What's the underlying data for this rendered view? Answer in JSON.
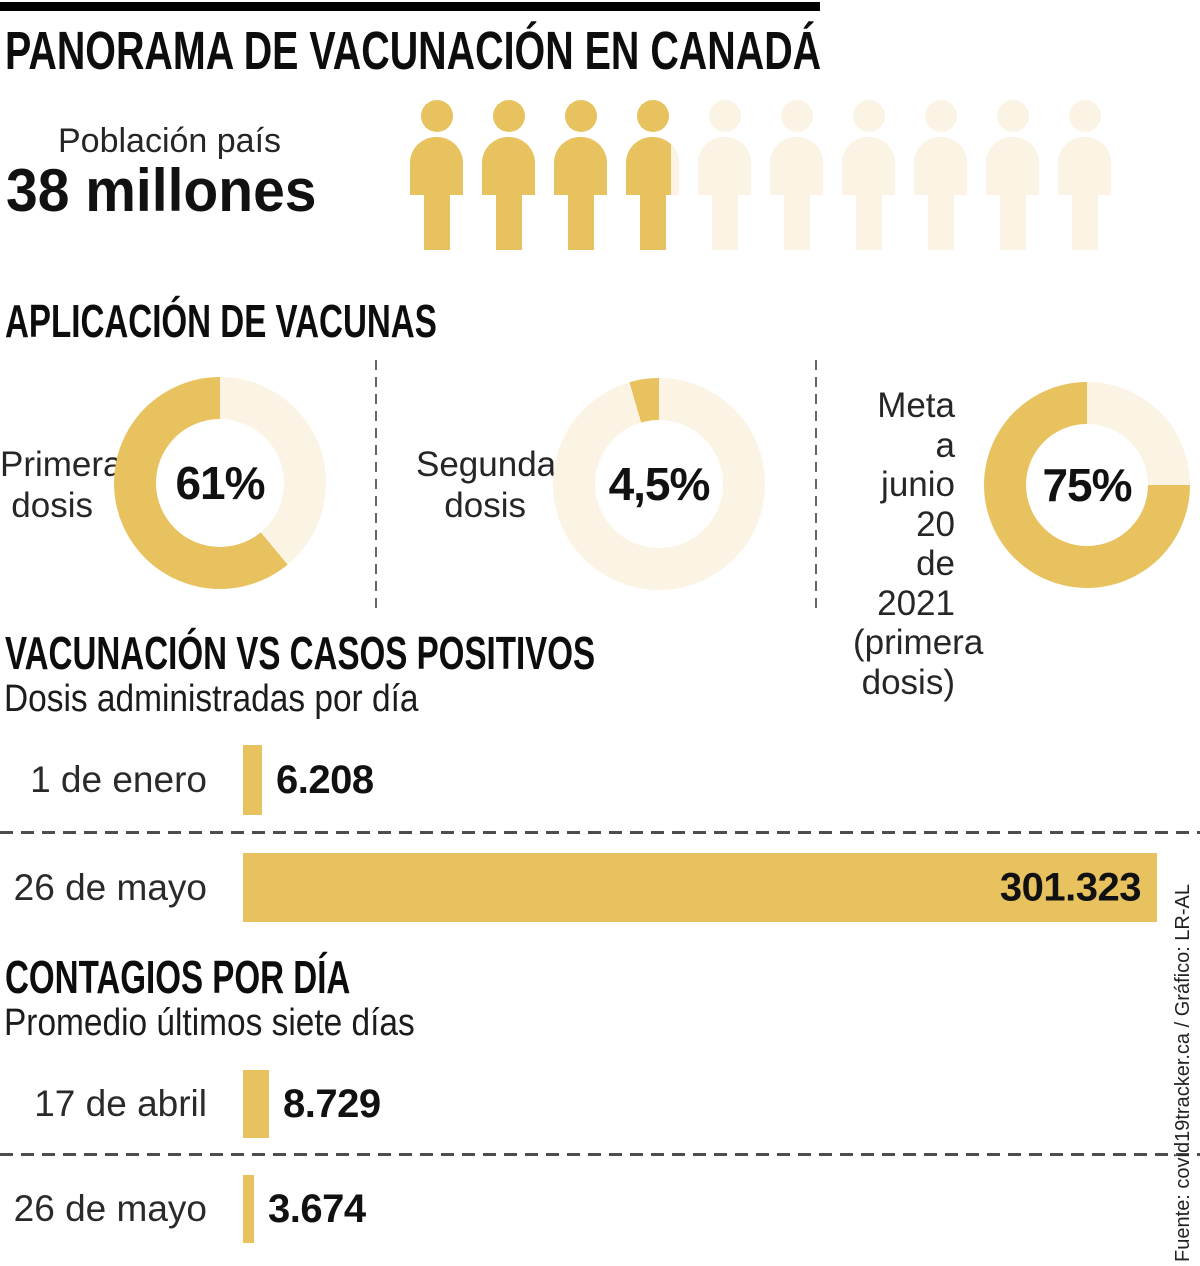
{
  "colors": {
    "gold": "#E7C25E",
    "cream": "#FBF3E3",
    "ink": "#111111",
    "line": "#555555"
  },
  "header": {
    "title": "PANORAMA DE VACUNACIÓN EN CANADÁ"
  },
  "population": {
    "label": "Población país",
    "value": "38 millones",
    "icons": [
      1,
      1,
      1,
      0.85,
      0,
      0,
      0,
      0,
      0,
      0
    ]
  },
  "vaccines": {
    "heading": "APLICACIÓN DE VACUNAS",
    "donuts": [
      {
        "label": "Primera\ndosis",
        "value": "61%",
        "pct": 61
      },
      {
        "label": "Segunda\ndosis",
        "value": "4,5%",
        "pct": 4.5
      },
      {
        "label": "Meta a\njunio 20\nde 2021\n(primera\ndosis)",
        "value": "75%",
        "pct": 75
      }
    ]
  },
  "doses": {
    "heading": "VACUNACIÓN VS CASOS POSITIVOS",
    "subheading": "Dosis administradas por día",
    "rows": [
      {
        "label": "1 de enero",
        "value": 6208,
        "display": "6.208"
      },
      {
        "label": "26 de mayo",
        "value": 301323,
        "display": "301.323"
      }
    ]
  },
  "contagions": {
    "heading": "CONTAGIOS POR DÍA",
    "subheading": "Promedio últimos siete días",
    "rows": [
      {
        "label": "17 de abril",
        "value": 8729,
        "display": "8.729"
      },
      {
        "label": "26 de mayo",
        "value": 3674,
        "display": "3.674"
      }
    ]
  },
  "source": "Fuente: covid19tracker.ca / Gráfico: LR-AL",
  "chart_data": [
    {
      "type": "pie",
      "title": "Aplicación de vacunas — Primera dosis",
      "labels": [
        "Primera dosis",
        "Restante"
      ],
      "values": [
        61,
        39
      ],
      "unit": "%",
      "center_label": "61%",
      "colors": [
        "#E7C25E",
        "#FBF3E3"
      ],
      "direction": "counterclockwise-from-top"
    },
    {
      "type": "pie",
      "title": "Aplicación de vacunas — Segunda dosis",
      "labels": [
        "Segunda dosis",
        "Restante"
      ],
      "values": [
        4.5,
        95.5
      ],
      "unit": "%",
      "center_label": "4,5%",
      "colors": [
        "#E7C25E",
        "#FBF3E3"
      ],
      "direction": "counterclockwise-from-top"
    },
    {
      "type": "pie",
      "title": "Meta a junio 20 de 2021 (primera dosis)",
      "labels": [
        "Meta",
        "Restante"
      ],
      "values": [
        75,
        25
      ],
      "unit": "%",
      "center_label": "75%",
      "colors": [
        "#E7C25E",
        "#FBF3E3"
      ],
      "direction": "counterclockwise-from-top"
    },
    {
      "type": "bar",
      "title": "Vacunación vs casos positivos — Dosis administradas por día",
      "orientation": "horizontal",
      "categories": [
        "1 de enero",
        "26 de mayo"
      ],
      "values": [
        6208,
        301323
      ],
      "data_labels": [
        "6.208",
        "301.323"
      ]
    },
    {
      "type": "bar",
      "title": "Contagios por día — Promedio últimos siete días",
      "orientation": "horizontal",
      "categories": [
        "17 de abril",
        "26 de mayo"
      ],
      "values": [
        8729,
        3674
      ],
      "data_labels": [
        "8.729",
        "3.674"
      ]
    },
    {
      "type": "pictogram",
      "title": "Población país",
      "value_label": "38 millones",
      "total_icons": 10,
      "filled_icons": 3.85
    }
  ]
}
